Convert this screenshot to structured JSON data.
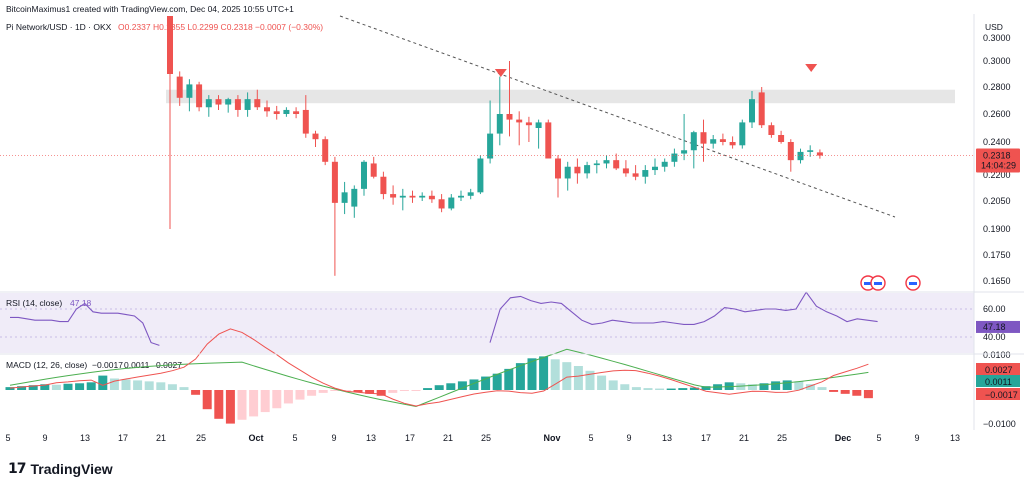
{
  "header": {
    "credit": "BitcoinMaximus1 created with TradingView.com, Dec 04, 2025 10:55 UTC+1",
    "symbol": "Pi Network/USD · 1D · OKX",
    "ohlc": "O0.2337 H0.2355 L0.2299 C0.2318 −0.0007 (−0.30%)"
  },
  "price_axis": {
    "currency": "USD",
    "ticks": [
      "0.3000",
      "0.2800",
      "0.2600",
      "0.2400",
      "0.2200",
      "0.2050",
      "0.1900",
      "0.1750",
      "0.1650"
    ],
    "last_price": "0.2318",
    "countdown": "14:04:29"
  },
  "rsi": {
    "label": "RSI (14, close)",
    "value": "47.18",
    "ticks": [
      "60.00",
      "40.00"
    ]
  },
  "macd": {
    "label": "MACD (12, 26, close)",
    "values": [
      "−0.0017",
      "0.0011",
      "0.0027"
    ],
    "ticks": [
      "0.0100",
      "−0.0100"
    ],
    "badges": [
      "0.0027",
      "0.0011",
      "−0.0017"
    ]
  },
  "x_axis": {
    "ticks": [
      "5",
      "9",
      "13",
      "17",
      "21",
      "25",
      "Oct",
      "5",
      "9",
      "13",
      "17",
      "21",
      "25",
      "Nov",
      "5",
      "9",
      "13",
      "17",
      "21",
      "25",
      "Dec",
      "5",
      "9",
      "13"
    ]
  },
  "footer": {
    "brand": "TradingView",
    "logo_mark": "17"
  },
  "colors": {
    "up": "#26a69a",
    "down": "#ef5350",
    "rsi": "#7e57c2",
    "signal": "#ef5350",
    "macd_line": "#4caf50",
    "resistance": "#e6e6e6"
  },
  "chart_data": {
    "type": "candlestick",
    "symbol": "Pi Network/USD",
    "timeframe": "1D",
    "exchange": "OKX",
    "candles_approx": [
      {
        "o": 0.355,
        "h": 0.365,
        "l": 0.19,
        "c": 0.29
      },
      {
        "o": 0.288,
        "h": 0.292,
        "l": 0.266,
        "c": 0.272
      },
      {
        "o": 0.272,
        "h": 0.286,
        "l": 0.262,
        "c": 0.282
      },
      {
        "o": 0.282,
        "h": 0.284,
        "l": 0.262,
        "c": 0.265
      },
      {
        "o": 0.265,
        "h": 0.274,
        "l": 0.258,
        "c": 0.271
      },
      {
        "o": 0.271,
        "h": 0.274,
        "l": 0.263,
        "c": 0.267
      },
      {
        "o": 0.267,
        "h": 0.272,
        "l": 0.261,
        "c": 0.271
      },
      {
        "o": 0.271,
        "h": 0.274,
        "l": 0.258,
        "c": 0.263
      },
      {
        "o": 0.263,
        "h": 0.276,
        "l": 0.258,
        "c": 0.271
      },
      {
        "o": 0.271,
        "h": 0.278,
        "l": 0.263,
        "c": 0.265
      },
      {
        "o": 0.265,
        "h": 0.27,
        "l": 0.258,
        "c": 0.262
      },
      {
        "o": 0.262,
        "h": 0.266,
        "l": 0.256,
        "c": 0.26
      },
      {
        "o": 0.26,
        "h": 0.265,
        "l": 0.258,
        "c": 0.263
      },
      {
        "o": 0.262,
        "h": 0.265,
        "l": 0.257,
        "c": 0.26
      },
      {
        "o": 0.263,
        "h": 0.274,
        "l": 0.243,
        "c": 0.246
      },
      {
        "o": 0.246,
        "h": 0.248,
        "l": 0.237,
        "c": 0.242
      },
      {
        "o": 0.242,
        "h": 0.244,
        "l": 0.226,
        "c": 0.228
      },
      {
        "o": 0.228,
        "h": 0.231,
        "l": 0.167,
        "c": 0.204
      },
      {
        "o": 0.204,
        "h": 0.216,
        "l": 0.198,
        "c": 0.21
      },
      {
        "o": 0.202,
        "h": 0.214,
        "l": 0.196,
        "c": 0.212
      },
      {
        "o": 0.212,
        "h": 0.229,
        "l": 0.208,
        "c": 0.228
      },
      {
        "o": 0.227,
        "h": 0.231,
        "l": 0.218,
        "c": 0.219
      },
      {
        "o": 0.219,
        "h": 0.222,
        "l": 0.206,
        "c": 0.209
      },
      {
        "o": 0.209,
        "h": 0.214,
        "l": 0.203,
        "c": 0.207
      },
      {
        "o": 0.207,
        "h": 0.212,
        "l": 0.2,
        "c": 0.208
      },
      {
        "o": 0.208,
        "h": 0.211,
        "l": 0.204,
        "c": 0.207
      },
      {
        "o": 0.207,
        "h": 0.21,
        "l": 0.205,
        "c": 0.208
      },
      {
        "o": 0.208,
        "h": 0.211,
        "l": 0.204,
        "c": 0.206
      },
      {
        "o": 0.206,
        "h": 0.209,
        "l": 0.199,
        "c": 0.201
      },
      {
        "o": 0.201,
        "h": 0.209,
        "l": 0.2,
        "c": 0.207
      },
      {
        "o": 0.207,
        "h": 0.211,
        "l": 0.205,
        "c": 0.208
      },
      {
        "o": 0.208,
        "h": 0.212,
        "l": 0.206,
        "c": 0.21
      },
      {
        "o": 0.21,
        "h": 0.232,
        "l": 0.209,
        "c": 0.23
      },
      {
        "o": 0.23,
        "h": 0.27,
        "l": 0.227,
        "c": 0.246
      },
      {
        "o": 0.246,
        "h": 0.288,
        "l": 0.238,
        "c": 0.26
      },
      {
        "o": 0.26,
        "h": 0.3,
        "l": 0.244,
        "c": 0.256
      },
      {
        "o": 0.256,
        "h": 0.262,
        "l": 0.238,
        "c": 0.254
      },
      {
        "o": 0.254,
        "h": 0.258,
        "l": 0.24,
        "c": 0.252
      },
      {
        "o": 0.25,
        "h": 0.256,
        "l": 0.236,
        "c": 0.254
      },
      {
        "o": 0.254,
        "h": 0.256,
        "l": 0.23,
        "c": 0.23
      },
      {
        "o": 0.23,
        "h": 0.232,
        "l": 0.207,
        "c": 0.218
      },
      {
        "o": 0.218,
        "h": 0.228,
        "l": 0.211,
        "c": 0.225
      },
      {
        "o": 0.225,
        "h": 0.23,
        "l": 0.215,
        "c": 0.221
      },
      {
        "o": 0.221,
        "h": 0.228,
        "l": 0.218,
        "c": 0.226
      },
      {
        "o": 0.226,
        "h": 0.229,
        "l": 0.221,
        "c": 0.227
      },
      {
        "o": 0.227,
        "h": 0.232,
        "l": 0.224,
        "c": 0.229
      },
      {
        "o": 0.229,
        "h": 0.233,
        "l": 0.223,
        "c": 0.224
      },
      {
        "o": 0.224,
        "h": 0.229,
        "l": 0.219,
        "c": 0.221
      },
      {
        "o": 0.221,
        "h": 0.226,
        "l": 0.217,
        "c": 0.219
      },
      {
        "o": 0.219,
        "h": 0.226,
        "l": 0.215,
        "c": 0.223
      },
      {
        "o": 0.223,
        "h": 0.23,
        "l": 0.22,
        "c": 0.225
      },
      {
        "o": 0.225,
        "h": 0.23,
        "l": 0.222,
        "c": 0.228
      },
      {
        "o": 0.228,
        "h": 0.236,
        "l": 0.225,
        "c": 0.233
      },
      {
        "o": 0.233,
        "h": 0.26,
        "l": 0.229,
        "c": 0.235
      },
      {
        "o": 0.235,
        "h": 0.248,
        "l": 0.224,
        "c": 0.247
      },
      {
        "o": 0.247,
        "h": 0.256,
        "l": 0.228,
        "c": 0.239
      },
      {
        "o": 0.239,
        "h": 0.245,
        "l": 0.236,
        "c": 0.242
      },
      {
        "o": 0.242,
        "h": 0.246,
        "l": 0.238,
        "c": 0.24
      },
      {
        "o": 0.24,
        "h": 0.244,
        "l": 0.236,
        "c": 0.238
      },
      {
        "o": 0.238,
        "h": 0.256,
        "l": 0.236,
        "c": 0.254
      },
      {
        "o": 0.254,
        "h": 0.277,
        "l": 0.25,
        "c": 0.271
      },
      {
        "o": 0.276,
        "h": 0.28,
        "l": 0.25,
        "c": 0.252
      },
      {
        "o": 0.252,
        "h": 0.254,
        "l": 0.243,
        "c": 0.245
      },
      {
        "o": 0.245,
        "h": 0.248,
        "l": 0.239,
        "c": 0.24
      },
      {
        "o": 0.24,
        "h": 0.242,
        "l": 0.222,
        "c": 0.229
      },
      {
        "o": 0.229,
        "h": 0.236,
        "l": 0.227,
        "c": 0.234
      },
      {
        "o": 0.234,
        "h": 0.238,
        "l": 0.231,
        "c": 0.235
      },
      {
        "o": 0.2337,
        "h": 0.2355,
        "l": 0.2299,
        "c": 0.2318
      }
    ]
  }
}
